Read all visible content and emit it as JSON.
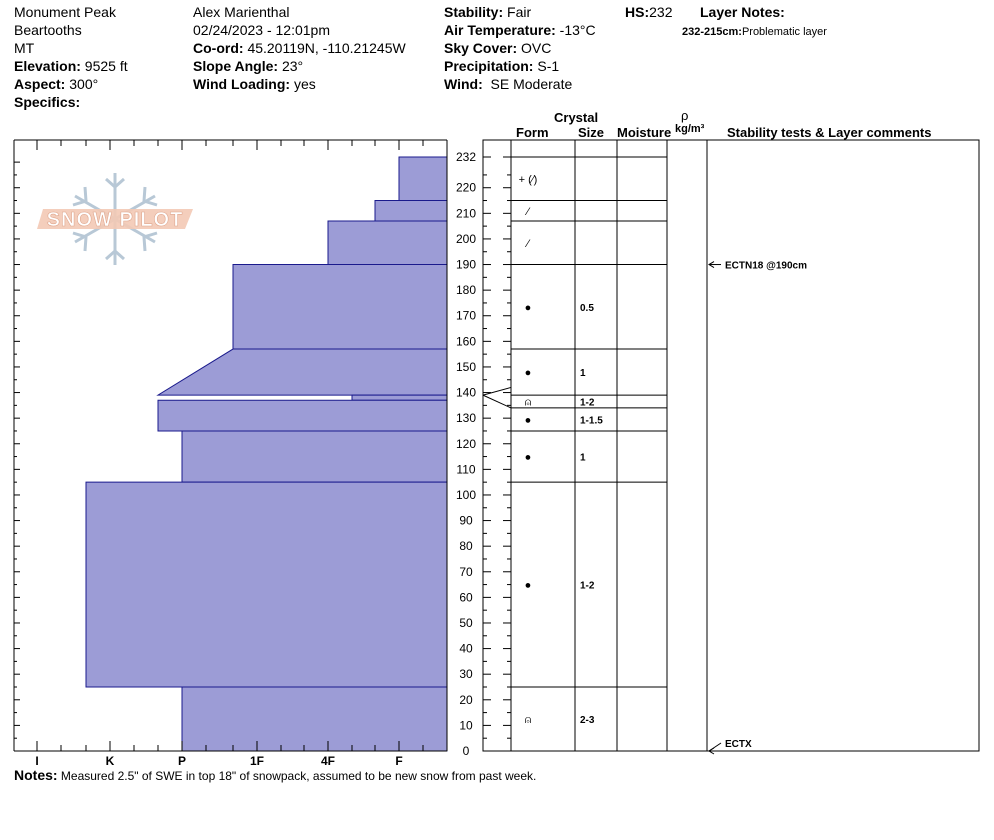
{
  "header": {
    "location": "Monument Peak",
    "range": "Beartooths",
    "state": "MT",
    "elevation_label": "Elevation:",
    "elevation": "9525 ft",
    "aspect_label": "Aspect:",
    "aspect": "300°",
    "specifics_label": "Specifics:",
    "observer": "Alex Marienthal",
    "datetime": "02/24/2023 - 12:01pm",
    "coord_label": "Co-ord:",
    "coord": "45.20119N, -110.21245W",
    "slope_label": "Slope Angle:",
    "slope": "23°",
    "wind_loading_label": "Wind Loading:",
    "wind_loading": "yes",
    "stability_label": "Stability:",
    "stability": "Fair",
    "air_temp_label": "Air Temperature:",
    "air_temp": "-13°C",
    "sky_label": "Sky Cover:",
    "sky": "OVC",
    "precip_label": "Precipitation:",
    "precip": "S-1",
    "wind_label": "Wind:",
    "wind": "SE Moderate",
    "hs_label": "HS:",
    "hs": "232",
    "layer_notes_label": "Layer Notes:",
    "layer_note_range": "232-215cm:",
    "layer_note_text": "Problematic layer"
  },
  "columns": {
    "crystal": "Crystal",
    "form": "Form",
    "size": "Size",
    "moisture": "Moisture",
    "rho": "ρ",
    "density_unit": "kg/m³",
    "stability_comments": "Stability tests & Layer comments"
  },
  "logo_text": "SNOW PILOT",
  "notes_label": "Notes:",
  "notes_text": "Measured 2.5\" of SWE in top 18\" of snowpack, assumed to be new snow from past week.",
  "colors": {
    "hardness_fill": "#9c9cd6",
    "hardness_stroke": "#1a1a8c",
    "logo_orange": "#f3c9b5",
    "logo_blue": "#b8c8d6"
  },
  "chart_data": {
    "type": "bar",
    "orientation": "horizontal",
    "hardness_scale": [
      "I",
      "K",
      "P",
      "1F",
      "4F",
      "F"
    ],
    "height_ticks": [
      "232",
      "220",
      "210",
      "200",
      "190",
      "180",
      "170",
      "160",
      "150",
      "140",
      "130",
      "120",
      "110",
      "100",
      "90",
      "80",
      "70",
      "60",
      "50",
      "40",
      "30",
      "20",
      "10",
      "0"
    ],
    "ylim": [
      0,
      232
    ],
    "layers": [
      {
        "top": 232,
        "bottom": 215,
        "hardness": "F"
      },
      {
        "top": 215,
        "bottom": 207,
        "hardness": "F+"
      },
      {
        "top": 207,
        "bottom": 190,
        "hardness": "4F"
      },
      {
        "top": 190,
        "bottom": 157,
        "hardness": "1F+"
      },
      {
        "top": 157,
        "bottom": 139,
        "hardness_top": "1F+",
        "hardness_bottom": "P+"
      },
      {
        "top": 139,
        "bottom": 137,
        "hardness": "4F-"
      },
      {
        "top": 137,
        "bottom": 125,
        "hardness": "P+"
      },
      {
        "top": 125,
        "bottom": 105,
        "hardness": "P"
      },
      {
        "top": 105,
        "bottom": 25,
        "hardness": "K+"
      },
      {
        "top": 25,
        "bottom": 0,
        "hardness": "P"
      }
    ],
    "grain_layers": [
      {
        "top": 232,
        "bottom": 215,
        "form": "+ (⁄)",
        "size": ""
      },
      {
        "top": 215,
        "bottom": 207,
        "form": "⁄",
        "size": ""
      },
      {
        "top": 207,
        "bottom": 190,
        "form": "⁄",
        "size": ""
      },
      {
        "top": 190,
        "bottom": 157,
        "form": "●",
        "size": "0.5"
      },
      {
        "top": 157,
        "bottom": 139,
        "form": "●",
        "size": "1"
      },
      {
        "top": 139,
        "bottom": 134,
        "form": "⍝",
        "size": "1-2"
      },
      {
        "top": 134,
        "bottom": 125,
        "form": "●",
        "size": "1-1.5"
      },
      {
        "top": 125,
        "bottom": 105,
        "form": "●",
        "size": "1"
      },
      {
        "top": 105,
        "bottom": 25,
        "form": "●",
        "size": "1-2"
      },
      {
        "top": 25,
        "bottom": 0,
        "form": "⍝",
        "size": "2-3"
      }
    ],
    "stability_tests": [
      {
        "height": 190,
        "text": "ECTN18 @190cm"
      },
      {
        "height": 0,
        "text": "ECTX"
      }
    ]
  }
}
